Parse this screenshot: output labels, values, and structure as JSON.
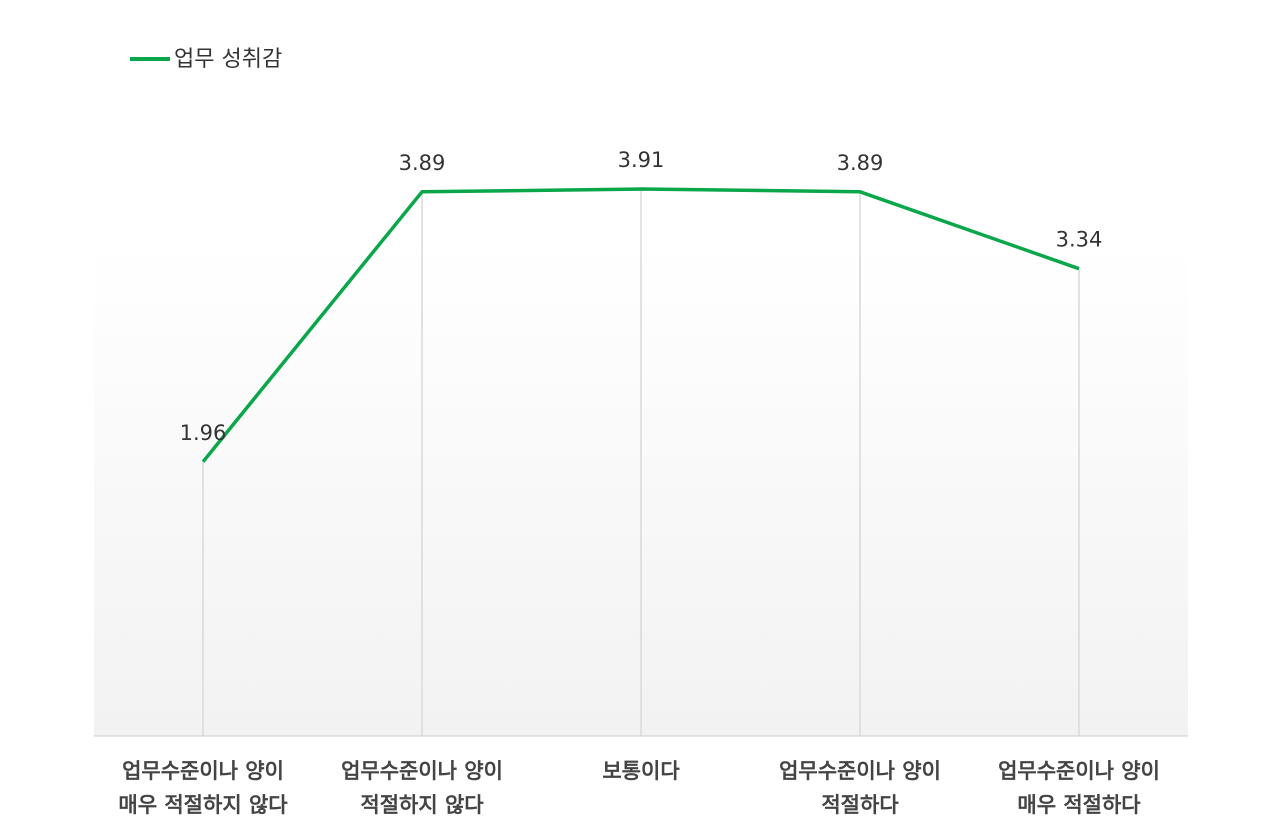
{
  "chart_data": {
    "type": "line",
    "categories": [
      [
        "업무수준이나 양이",
        "매우 적절하지 않다"
      ],
      [
        "업무수준이나 양이",
        "적절하지 않다"
      ],
      [
        "보통이다"
      ],
      [
        "업무수준이나 양이",
        "적절하다"
      ],
      [
        "업무수준이나 양이",
        "매우 적절하다"
      ]
    ],
    "series": [
      {
        "name": "업무 성취감",
        "values": [
          1.96,
          3.89,
          3.91,
          3.89,
          3.34
        ],
        "value_labels": [
          "1.96",
          "3.89",
          "3.91",
          "3.89",
          "3.34"
        ],
        "color": "#0aa64a"
      }
    ],
    "ylim": [
      0,
      4.3
    ],
    "grid": "vertical",
    "legend": "top-left",
    "colors": {
      "plot_bg_top": "#ffffff",
      "plot_bg_bottom": "#f2f2f2",
      "gridline": "#d9d9d9",
      "axis": "#cccccc"
    }
  }
}
